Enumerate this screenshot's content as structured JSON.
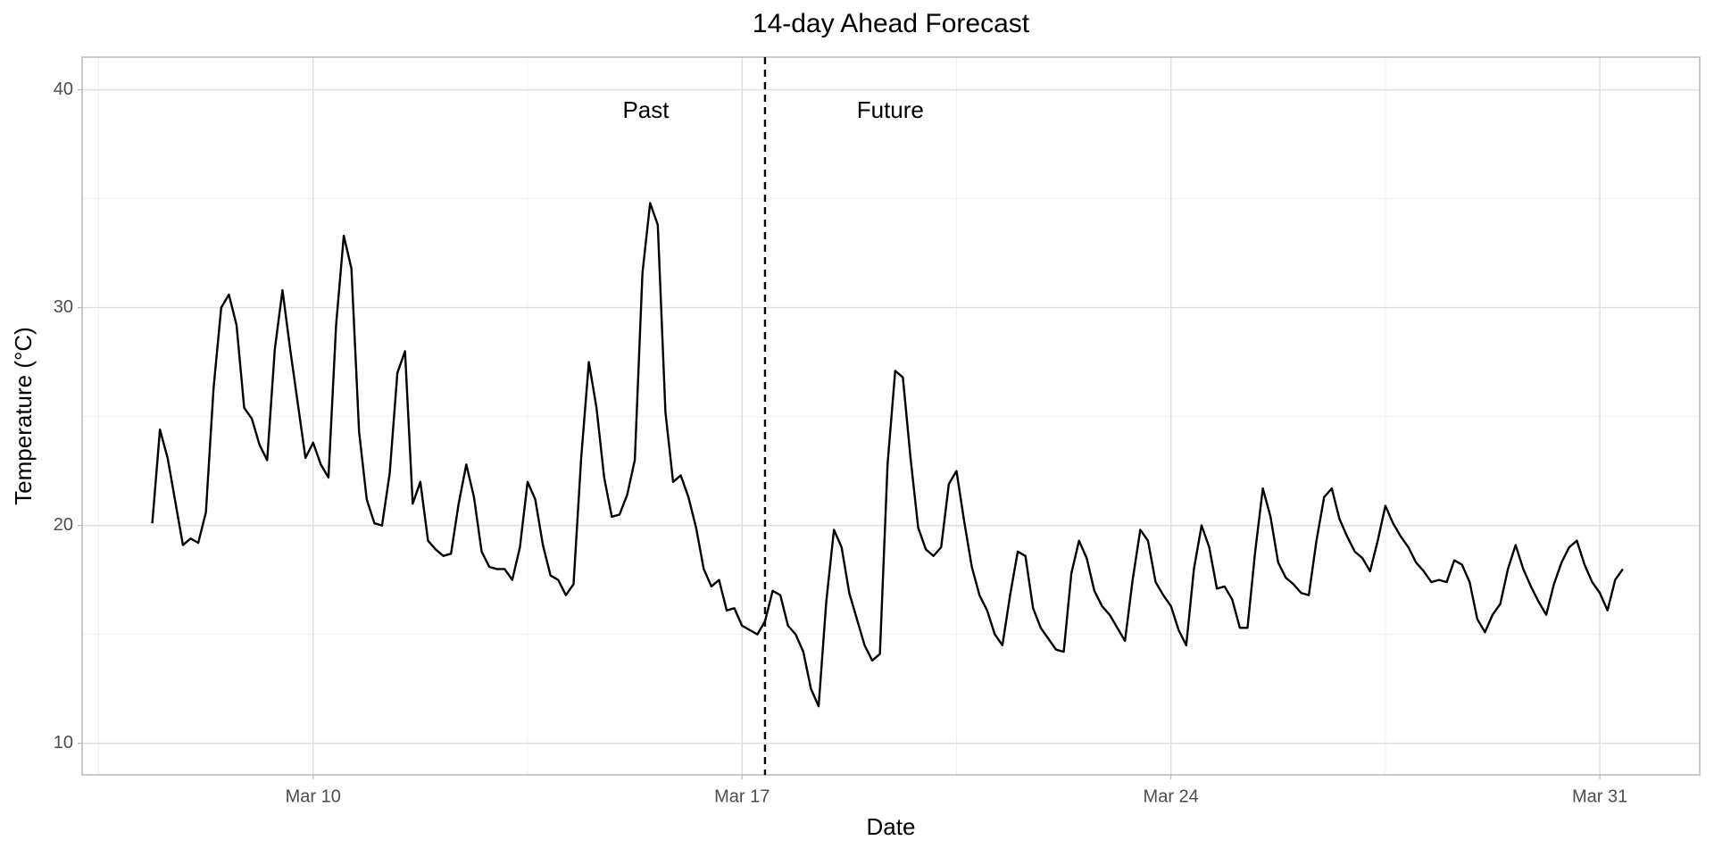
{
  "chart_data": {
    "type": "line",
    "title": "14-day Ahead Forecast",
    "x_label": "Date",
    "y_label": "Temperature (°C)",
    "color": "#000000",
    "grid": true,
    "xlim": [
      6.23,
      32.63
    ],
    "ylim": [
      8.55,
      41.5
    ],
    "xticks": [
      {
        "value": 10,
        "label": "Mar 10"
      },
      {
        "value": 17,
        "label": "Mar 17"
      },
      {
        "value": 24,
        "label": "Mar 24"
      },
      {
        "value": 31,
        "label": "Mar 31"
      }
    ],
    "yticks": [
      10,
      20,
      30,
      40
    ],
    "vline": 17.375,
    "annotations": [
      {
        "text": "Past",
        "x": 15.43,
        "y": 39
      },
      {
        "text": "Future",
        "x": 19.42,
        "y": 39
      }
    ],
    "x": [
      7.375,
      7.5,
      7.625,
      7.75,
      7.875,
      8,
      8.125,
      8.25,
      8.375,
      8.5,
      8.625,
      8.75,
      8.875,
      9,
      9.125,
      9.25,
      9.375,
      9.5,
      9.625,
      9.75,
      9.875,
      10,
      10.125,
      10.25,
      10.375,
      10.5,
      10.625,
      10.75,
      10.875,
      11,
      11.125,
      11.25,
      11.375,
      11.5,
      11.625,
      11.75,
      11.875,
      12,
      12.125,
      12.25,
      12.375,
      12.5,
      12.625,
      12.75,
      12.875,
      13,
      13.125,
      13.25,
      13.375,
      13.5,
      13.625,
      13.75,
      13.875,
      14,
      14.125,
      14.25,
      14.375,
      14.5,
      14.625,
      14.75,
      14.875,
      15,
      15.125,
      15.25,
      15.375,
      15.5,
      15.625,
      15.75,
      15.875,
      16,
      16.125,
      16.25,
      16.375,
      16.5,
      16.625,
      16.75,
      16.875,
      17,
      17.125,
      17.25,
      17.375,
      17.5,
      17.625,
      17.75,
      17.875,
      18,
      18.125,
      18.25,
      18.375,
      18.5,
      18.625,
      18.75,
      18.875,
      19,
      19.125,
      19.25,
      19.375,
      19.5,
      19.625,
      19.75,
      19.875,
      20,
      20.125,
      20.25,
      20.375,
      20.5,
      20.625,
      20.75,
      20.875,
      21,
      21.125,
      21.25,
      21.375,
      21.5,
      21.625,
      21.75,
      21.875,
      22,
      22.125,
      22.25,
      22.375,
      22.5,
      22.625,
      22.75,
      22.875,
      23,
      23.125,
      23.25,
      23.375,
      23.5,
      23.625,
      23.75,
      23.875,
      24,
      24.125,
      24.25,
      24.375,
      24.5,
      24.625,
      24.75,
      24.875,
      25,
      25.125,
      25.25,
      25.375,
      25.5,
      25.625,
      25.75,
      25.875,
      26,
      26.125,
      26.25,
      26.375,
      26.5,
      26.625,
      26.75,
      26.875,
      27,
      27.125,
      27.25,
      27.375,
      27.5,
      27.625,
      27.75,
      27.875,
      28,
      28.125,
      28.25,
      28.375,
      28.5,
      28.625,
      28.75,
      28.875,
      29,
      29.125,
      29.25,
      29.375,
      29.5,
      29.625,
      29.75,
      29.875,
      30,
      30.125,
      30.25,
      30.375,
      30.5,
      30.625,
      30.75,
      30.875,
      31,
      31.125,
      31.25,
      31.375
    ],
    "values": [
      20.1,
      24.4,
      23.1,
      21.1,
      19.1,
      19.4,
      19.2,
      20.6,
      26.3,
      30.0,
      30.6,
      29.2,
      25.4,
      24.9,
      23.7,
      23.0,
      28.1,
      30.8,
      28.1,
      25.6,
      23.1,
      23.8,
      22.8,
      22.2,
      29.2,
      33.3,
      31.8,
      24.3,
      21.2,
      20.1,
      20.0,
      22.4,
      27.0,
      28.0,
      21.0,
      22.0,
      19.3,
      18.9,
      18.6,
      18.7,
      21.0,
      22.8,
      21.3,
      18.8,
      18.1,
      18.0,
      18.0,
      17.5,
      19.0,
      22.0,
      21.2,
      19.1,
      17.7,
      17.5,
      16.8,
      17.3,
      23.1,
      27.5,
      25.4,
      22.2,
      20.4,
      20.5,
      21.4,
      23.0,
      31.6,
      34.8,
      33.8,
      25.2,
      22.0,
      22.3,
      21.3,
      19.9,
      18.0,
      17.2,
      17.5,
      16.1,
      16.2,
      15.4,
      15.2,
      15.0,
      15.6,
      17.0,
      16.8,
      15.4,
      15.0,
      14.2,
      12.5,
      11.7,
      16.5,
      19.8,
      19.0,
      16.9,
      15.7,
      14.5,
      13.8,
      14.1,
      22.8,
      27.1,
      26.8,
      23.1,
      19.9,
      18.9,
      18.6,
      19.0,
      21.9,
      22.5,
      20.2,
      18.1,
      16.8,
      16.1,
      15.0,
      14.5,
      16.8,
      18.8,
      18.6,
      16.2,
      15.3,
      14.8,
      14.3,
      14.2,
      17.8,
      19.3,
      18.5,
      17.0,
      16.3,
      15.9,
      15.3,
      14.7,
      17.5,
      19.8,
      19.3,
      17.4,
      16.8,
      16.3,
      15.2,
      14.5,
      18.0,
      20.0,
      19.0,
      17.1,
      17.2,
      16.6,
      15.3,
      15.3,
      18.8,
      21.7,
      20.4,
      18.3,
      17.6,
      17.3,
      16.9,
      16.8,
      19.3,
      21.3,
      21.7,
      20.3,
      19.5,
      18.8,
      18.5,
      17.9,
      19.3,
      20.9,
      20.1,
      19.5,
      19.0,
      18.3,
      17.9,
      17.4,
      17.5,
      17.4,
      18.4,
      18.2,
      17.4,
      15.7,
      15.1,
      15.9,
      16.4,
      18.0,
      19.1,
      18.0,
      17.2,
      16.5,
      15.9,
      17.3,
      18.3,
      19.0,
      19.3,
      18.2,
      17.4,
      16.9,
      16.1,
      17.5,
      18.0
    ]
  }
}
